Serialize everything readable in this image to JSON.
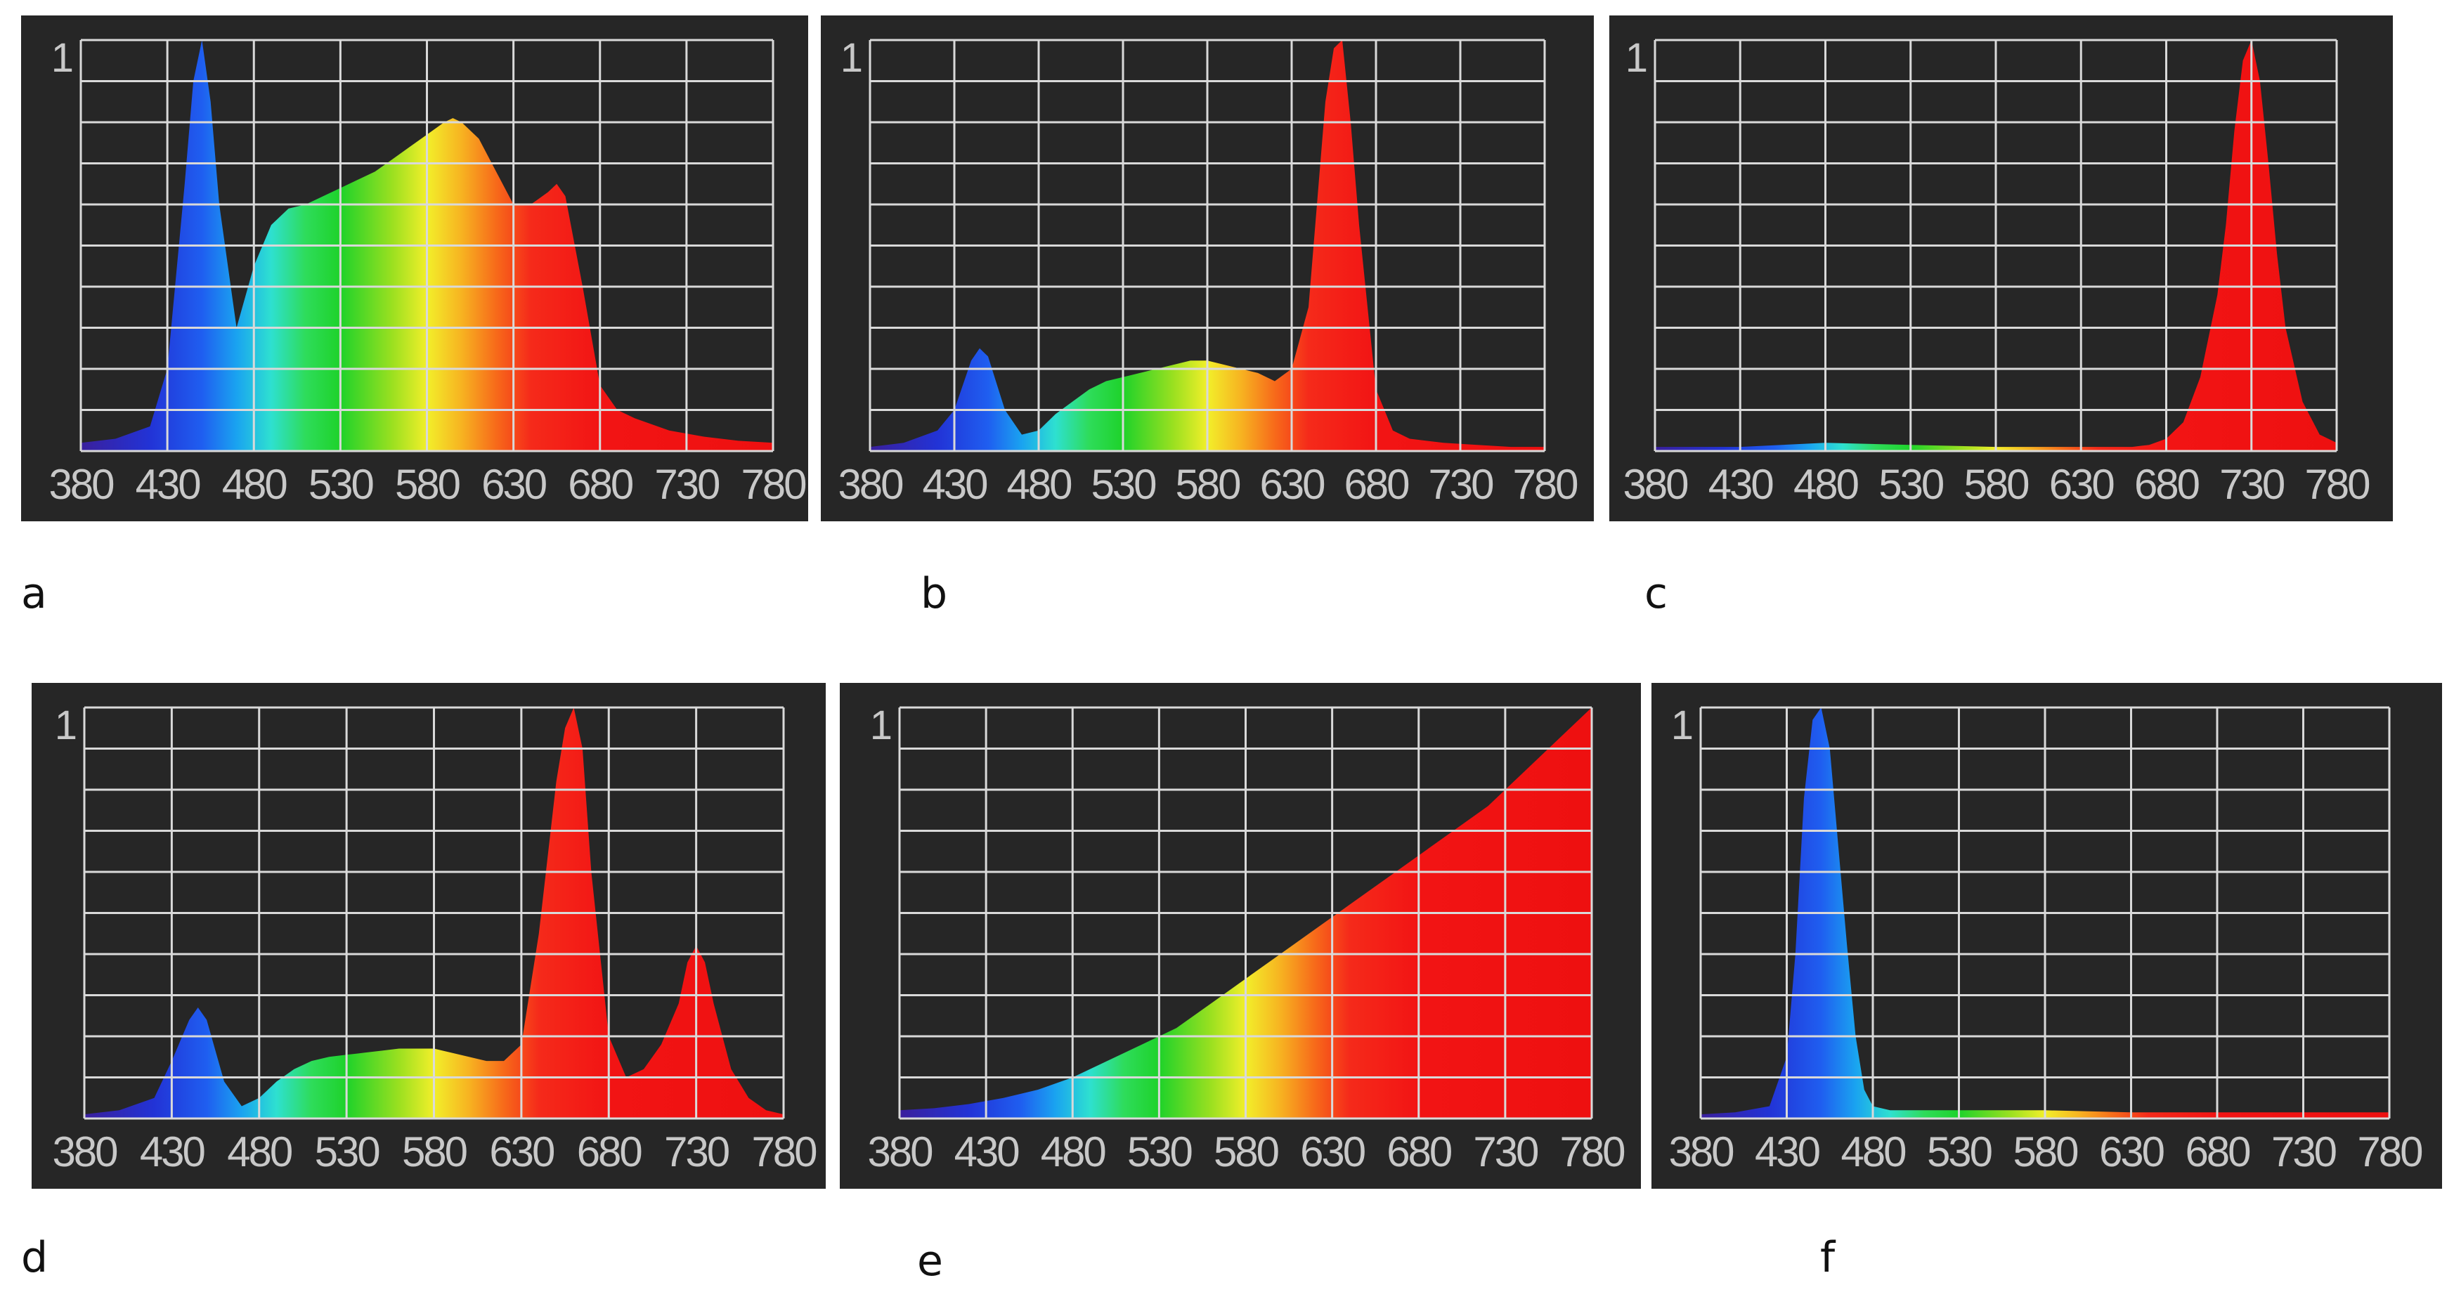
{
  "spectrum_colors": {
    "380": "#3a1f9c",
    "420": "#2233d6",
    "450": "#1f5ef0",
    "470": "#1aa3f0",
    "490": "#2ee0d0",
    "510": "#2edc5a",
    "530": "#1ed22a",
    "560": "#9be020",
    "580": "#f2ef2a",
    "600": "#f7b321",
    "620": "#f76a1a",
    "640": "#f52a1a",
    "680": "#f21414",
    "780": "#ee1010"
  },
  "panel_background": "#262626",
  "grid_color": "#d9d9d9",
  "chart_data": [
    {
      "caption": "a",
      "type": "area",
      "x_ticks": [
        "380",
        "430",
        "480",
        "530",
        "580",
        "630",
        "680",
        "730",
        "780"
      ],
      "y_label": "1",
      "xlim": [
        380,
        780
      ],
      "ylim": [
        0,
        1
      ],
      "grid": true,
      "x": [
        380,
        400,
        420,
        430,
        440,
        445,
        450,
        455,
        460,
        470,
        480,
        490,
        500,
        510,
        520,
        530,
        540,
        550,
        560,
        570,
        580,
        590,
        595,
        600,
        610,
        620,
        630,
        640,
        650,
        655,
        660,
        670,
        680,
        690,
        700,
        720,
        740,
        760,
        780
      ],
      "y": [
        0.02,
        0.03,
        0.06,
        0.2,
        0.65,
        0.9,
        1.0,
        0.85,
        0.6,
        0.3,
        0.45,
        0.55,
        0.59,
        0.6,
        0.62,
        0.64,
        0.66,
        0.68,
        0.71,
        0.74,
        0.77,
        0.8,
        0.81,
        0.8,
        0.76,
        0.68,
        0.6,
        0.6,
        0.63,
        0.65,
        0.62,
        0.4,
        0.16,
        0.1,
        0.08,
        0.05,
        0.035,
        0.025,
        0.02
      ]
    },
    {
      "caption": "b",
      "type": "area",
      "x_ticks": [
        "380",
        "430",
        "480",
        "530",
        "580",
        "630",
        "680",
        "730",
        "780"
      ],
      "y_label": "1",
      "xlim": [
        380,
        780
      ],
      "ylim": [
        0,
        1
      ],
      "grid": true,
      "x": [
        380,
        400,
        420,
        430,
        440,
        445,
        450,
        460,
        470,
        480,
        490,
        500,
        510,
        520,
        530,
        540,
        550,
        560,
        570,
        580,
        590,
        600,
        610,
        620,
        630,
        640,
        645,
        650,
        655,
        660,
        665,
        670,
        680,
        690,
        700,
        720,
        740,
        760,
        780
      ],
      "y": [
        0.01,
        0.02,
        0.05,
        0.1,
        0.22,
        0.25,
        0.23,
        0.1,
        0.04,
        0.05,
        0.09,
        0.12,
        0.15,
        0.17,
        0.18,
        0.19,
        0.2,
        0.21,
        0.22,
        0.22,
        0.21,
        0.2,
        0.19,
        0.17,
        0.2,
        0.35,
        0.6,
        0.85,
        0.98,
        1.0,
        0.8,
        0.55,
        0.15,
        0.05,
        0.03,
        0.02,
        0.015,
        0.01,
        0.01
      ]
    },
    {
      "caption": "c",
      "type": "area",
      "x_ticks": [
        "380",
        "430",
        "480",
        "530",
        "580",
        "630",
        "680",
        "730",
        "780"
      ],
      "y_label": "1",
      "xlim": [
        380,
        780
      ],
      "ylim": [
        0,
        1
      ],
      "grid": true,
      "x": [
        380,
        430,
        480,
        530,
        580,
        630,
        660,
        670,
        680,
        690,
        700,
        710,
        715,
        720,
        725,
        730,
        735,
        740,
        745,
        750,
        760,
        770,
        780
      ],
      "y": [
        0.01,
        0.01,
        0.02,
        0.015,
        0.01,
        0.01,
        0.01,
        0.015,
        0.03,
        0.07,
        0.18,
        0.38,
        0.55,
        0.78,
        0.95,
        1.0,
        0.9,
        0.7,
        0.48,
        0.3,
        0.12,
        0.04,
        0.02
      ]
    },
    {
      "caption": "d",
      "type": "area",
      "x_ticks": [
        "380",
        "430",
        "480",
        "530",
        "580",
        "630",
        "680",
        "730",
        "780"
      ],
      "y_label": "1",
      "xlim": [
        380,
        780
      ],
      "ylim": [
        0,
        1
      ],
      "grid": true,
      "x": [
        380,
        400,
        420,
        430,
        440,
        445,
        450,
        460,
        470,
        480,
        490,
        500,
        510,
        520,
        530,
        540,
        550,
        560,
        570,
        580,
        590,
        600,
        610,
        620,
        630,
        640,
        650,
        655,
        660,
        665,
        670,
        680,
        690,
        700,
        710,
        720,
        725,
        730,
        735,
        740,
        750,
        760,
        770,
        780
      ],
      "y": [
        0.01,
        0.02,
        0.05,
        0.14,
        0.24,
        0.27,
        0.24,
        0.09,
        0.03,
        0.05,
        0.09,
        0.12,
        0.14,
        0.15,
        0.155,
        0.16,
        0.165,
        0.17,
        0.17,
        0.17,
        0.16,
        0.15,
        0.14,
        0.14,
        0.18,
        0.45,
        0.82,
        0.95,
        1.0,
        0.9,
        0.6,
        0.2,
        0.1,
        0.12,
        0.18,
        0.28,
        0.38,
        0.42,
        0.38,
        0.28,
        0.12,
        0.05,
        0.02,
        0.01
      ]
    },
    {
      "caption": "e",
      "type": "area",
      "x_ticks": [
        "380",
        "430",
        "480",
        "530",
        "580",
        "630",
        "680",
        "730",
        "780"
      ],
      "y_label": "1",
      "xlim": [
        380,
        780
      ],
      "ylim": [
        0,
        1
      ],
      "grid": true,
      "x": [
        380,
        400,
        420,
        440,
        460,
        480,
        500,
        520,
        540,
        560,
        580,
        600,
        620,
        640,
        660,
        680,
        700,
        720,
        740,
        760,
        780
      ],
      "y": [
        0.02,
        0.025,
        0.035,
        0.05,
        0.07,
        0.1,
        0.14,
        0.18,
        0.22,
        0.28,
        0.34,
        0.4,
        0.46,
        0.52,
        0.58,
        0.64,
        0.7,
        0.76,
        0.84,
        0.92,
        1.0
      ]
    },
    {
      "caption": "f",
      "type": "area",
      "x_ticks": [
        "380",
        "430",
        "480",
        "530",
        "580",
        "630",
        "680",
        "730",
        "780"
      ],
      "y_label": "1",
      "xlim": [
        380,
        780
      ],
      "ylim": [
        0,
        1
      ],
      "grid": true,
      "x": [
        380,
        400,
        420,
        430,
        435,
        440,
        445,
        450,
        455,
        460,
        465,
        470,
        475,
        480,
        490,
        500,
        530,
        580,
        630,
        680,
        730,
        780
      ],
      "y": [
        0.01,
        0.015,
        0.03,
        0.15,
        0.4,
        0.78,
        0.97,
        1.0,
        0.9,
        0.66,
        0.42,
        0.2,
        0.07,
        0.03,
        0.02,
        0.02,
        0.02,
        0.02,
        0.015,
        0.015,
        0.015,
        0.015
      ]
    }
  ]
}
